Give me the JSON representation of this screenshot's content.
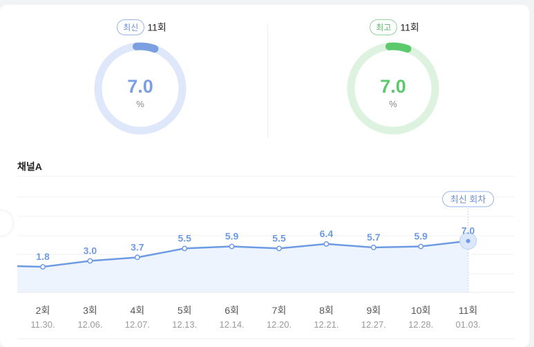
{
  "metrics": [
    {
      "badge": "최신",
      "count": "11회",
      "value": "7.0",
      "unit": "%",
      "color": "#7b9fe0",
      "track": "#dfe8fb",
      "fraction": 0.07
    },
    {
      "badge": "최고",
      "count": "11회",
      "value": "7.0",
      "unit": "%",
      "color": "#5cc96d",
      "track": "#ddf3df",
      "fraction": 0.07
    }
  ],
  "section_title": "채널A",
  "chart_data": {
    "type": "line",
    "x_labels": [
      "2회",
      "3회",
      "4회",
      "5회",
      "6회",
      "7회",
      "8회",
      "9회",
      "10회",
      "11회"
    ],
    "dates": [
      "11.30.",
      "12.06.",
      "12.07.",
      "12.13.",
      "12.14.",
      "12.20.",
      "12.21.",
      "12.27.",
      "12.28.",
      "01.03."
    ],
    "values": [
      1.8,
      3.0,
      3.7,
      5.5,
      5.9,
      5.5,
      6.4,
      5.7,
      5.9,
      7.0
    ],
    "value_labels": [
      "1.8",
      "3.0",
      "3.7",
      "5.5",
      "5.9",
      "5.5",
      "6.4",
      "5.7",
      "5.9",
      "7.0"
    ],
    "highlight_label": "최신 회차",
    "line_color": "#6d9be3",
    "fill_color": "#eef4fd"
  }
}
